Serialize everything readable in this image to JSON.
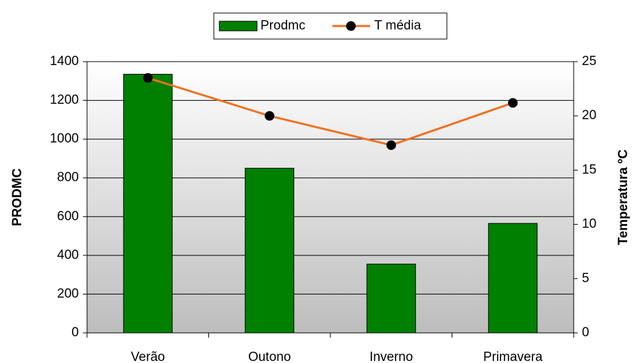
{
  "chart_data": {
    "type": "bar_line",
    "categories": [
      "Verão",
      "Outono",
      "Inverno",
      "Primavera"
    ],
    "series": [
      {
        "name": "Prodmc",
        "color": "#008000",
        "values": [
          1335,
          850,
          355,
          565
        ]
      },
      {
        "name": "T média",
        "color": "#f07020",
        "values": [
          23.5,
          20,
          17.3,
          21.2
        ],
        "axis": "y2"
      }
    ],
    "ylabel": "PRODMC",
    "y2label": "Temperatura ºC",
    "ylim": [
      0,
      1400
    ],
    "yticks": [
      0,
      200,
      400,
      600,
      800,
      1000,
      1200,
      1400
    ],
    "y2lim": [
      0,
      25
    ],
    "y2ticks": [
      0,
      5,
      10,
      15,
      20,
      25
    ],
    "grid": true,
    "legend": "top"
  }
}
